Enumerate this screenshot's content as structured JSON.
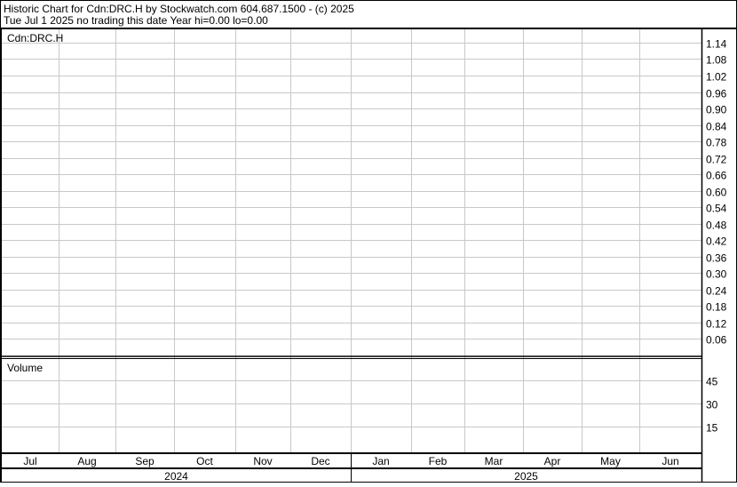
{
  "header": {
    "line1": "Historic Chart for Cdn:DRC.H by Stockwatch.com 604.687.1500 - (c) 2025",
    "line2": "Tue Jul  1 2025   no trading this date  Year hi=0.00  lo=0.00"
  },
  "colors": {
    "grid": "#c8c8c8",
    "axis": "#000000",
    "background": "#ffffff"
  },
  "chart_data": [
    {
      "type": "line",
      "title": "Cdn:DRC.H",
      "series": [],
      "y_ticks": [
        1.14,
        1.08,
        1.02,
        0.96,
        0.9,
        0.84,
        0.78,
        0.72,
        0.66,
        0.6,
        0.54,
        0.48,
        0.42,
        0.36,
        0.3,
        0.24,
        0.18,
        0.12,
        0.06
      ],
      "y_tick_labels": [
        "1.14",
        "1.08",
        "1.02",
        "0.96",
        "0.90",
        "0.84",
        "0.78",
        "0.72",
        "0.66",
        "0.60",
        "0.54",
        "0.48",
        "0.42",
        "0.36",
        "0.30",
        "0.24",
        "0.18",
        "0.12",
        "0.06"
      ],
      "ylim": [
        0,
        1.2
      ],
      "grid": true,
      "y_axis_side": "right"
    },
    {
      "type": "bar",
      "title": "Volume",
      "series": [],
      "y_ticks": [
        45,
        30,
        15
      ],
      "y_tick_labels": [
        "45",
        "30",
        "15"
      ],
      "ylim": [
        0,
        60
      ],
      "grid": true,
      "y_axis_side": "right"
    }
  ],
  "x_axis": {
    "months": [
      "Jul",
      "Aug",
      "Sep",
      "Oct",
      "Nov",
      "Dec",
      "Jan",
      "Feb",
      "Mar",
      "Apr",
      "May",
      "Jun"
    ],
    "years": [
      "2024",
      "2025"
    ]
  }
}
